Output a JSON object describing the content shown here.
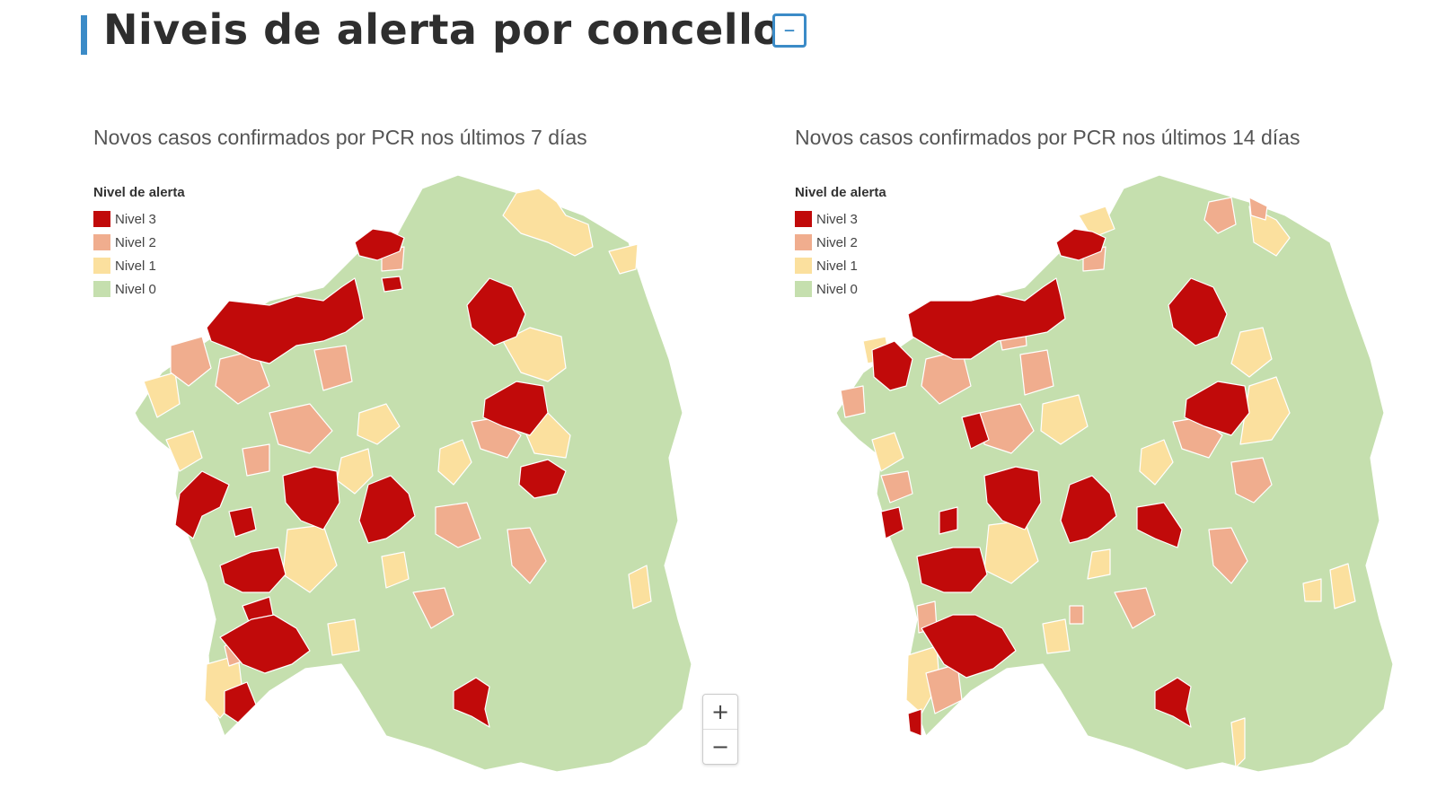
{
  "header": {
    "title": "Niveis de alerta por concello",
    "collapse_symbol": "–"
  },
  "colors": {
    "nivel3": "#c10a0a",
    "nivel2": "#f0ad8e",
    "nivel1": "#fbe09e",
    "nivel0": "#c5dfae",
    "accent": "#3b8bc7"
  },
  "legend": {
    "title": "Nivel de alerta",
    "items": [
      "Nivel 3",
      "Nivel 2",
      "Nivel 1",
      "Nivel 0"
    ]
  },
  "maps": [
    {
      "title": "Novos casos confirmados por PCR nos últimos 7 días"
    },
    {
      "title": "Novos casos confirmados por PCR nos últimos 14 días"
    }
  ],
  "zoom": {
    "in": "+",
    "out": "−"
  }
}
